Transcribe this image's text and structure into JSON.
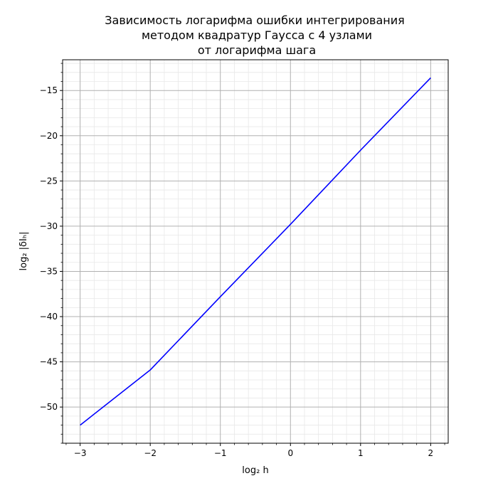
{
  "chart_data": {
    "type": "line",
    "title_lines": [
      "Зависимость логарифма ошибки интегрирования",
      "методом квадратур Гаусса с 4 узлами",
      "от логарифма шага"
    ],
    "xlabel": "log₂ h",
    "ylabel": "log₂ |δIₕ|",
    "xlim": [
      -3.25,
      2.25
    ],
    "ylim": [
      -54,
      -11.6
    ],
    "x_ticks": [
      -3,
      -2,
      -1,
      0,
      1,
      2
    ],
    "x_tick_labels": [
      "−3",
      "−2",
      "−1",
      "0",
      "1",
      "2"
    ],
    "y_ticks": [
      -50,
      -45,
      -40,
      -35,
      -30,
      -25,
      -20,
      -15
    ],
    "y_tick_labels": [
      "−50",
      "−45",
      "−40",
      "−35",
      "−30",
      "−25",
      "−20",
      "−15"
    ],
    "x_minor_step": 0.2,
    "y_minor_step": 1,
    "grid": {
      "major": true,
      "minor": true
    },
    "series": [
      {
        "color": "#0000ff",
        "x": [
          -3,
          -2,
          -1,
          0,
          1,
          2
        ],
        "y": [
          -52.0,
          -45.9,
          -37.8,
          -29.8,
          -21.6,
          -13.6
        ]
      }
    ]
  }
}
